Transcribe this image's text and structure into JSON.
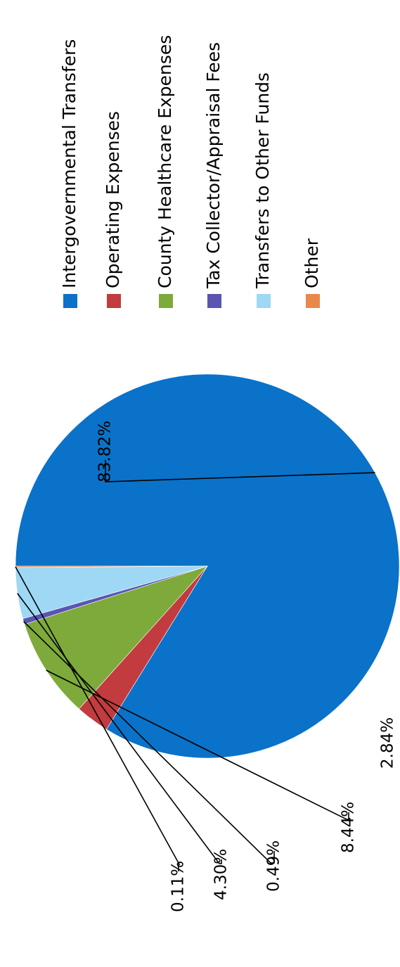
{
  "chart_data": {
    "type": "pie",
    "title": "",
    "legend_position": "right",
    "start_angle_deg": 180,
    "direction": "clockwise",
    "slices": [
      {
        "label": "Intergovernmental Transfers",
        "value": 83.82,
        "display": "83.82%",
        "color": "#0A72C9"
      },
      {
        "label": "Operating Expenses",
        "value": 2.84,
        "display": "2.84%",
        "color": "#C23B3F"
      },
      {
        "label": "County Healthcare Expenses",
        "value": 8.44,
        "display": "8.44%",
        "color": "#7DAA3A"
      },
      {
        "label": "Tax Collector/Appraisal Fees",
        "value": 0.49,
        "display": "0.49%",
        "color": "#5A55B3"
      },
      {
        "label": "Transfers to Other Funds",
        "value": 4.3,
        "display": "4.30%",
        "color": "#9ED8F4"
      },
      {
        "label": "Other",
        "value": 0.11,
        "display": "0.11%",
        "color": "#E8894A"
      }
    ]
  }
}
